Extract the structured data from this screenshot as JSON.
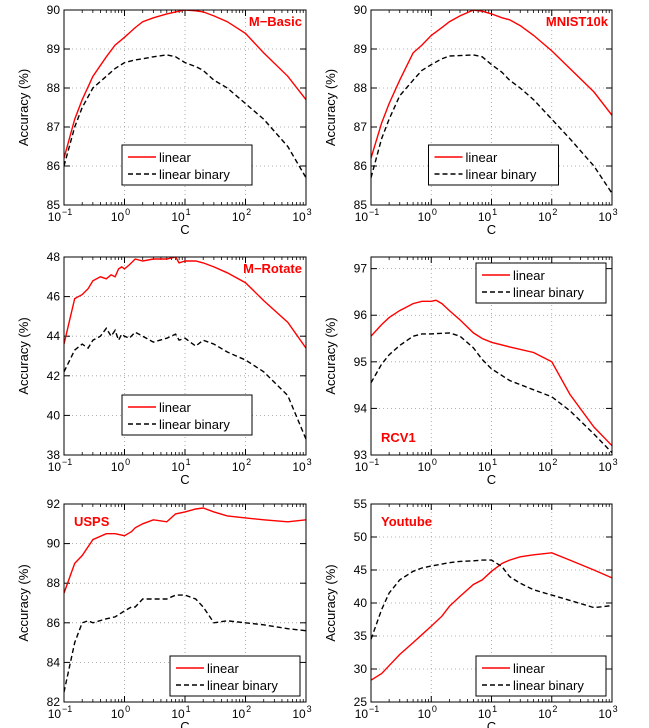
{
  "chart_data": [
    {
      "type": "line",
      "title": "M−Basic",
      "title_position": "top-right",
      "xlabel": "C",
      "ylabel": "Accuracy (%)",
      "xscale": "log",
      "xlim": [
        0.1,
        1000
      ],
      "ylim": [
        85,
        90
      ],
      "yticks": [
        "85",
        "86",
        "87",
        "88",
        "89",
        "90"
      ],
      "grid": true,
      "legend_position": "bottom-center",
      "series": [
        {
          "name": "linear",
          "color": "#ff0000",
          "dash": "solid",
          "x": [
            0.1,
            0.15,
            0.2,
            0.3,
            0.5,
            0.7,
            1,
            1.5,
            2,
            3,
            5,
            7,
            10,
            15,
            20,
            30,
            50,
            100,
            200,
            500,
            1000
          ],
          "y": [
            86.2,
            87.2,
            87.7,
            88.3,
            88.8,
            89.1,
            89.3,
            89.55,
            89.7,
            89.8,
            89.9,
            89.95,
            90.0,
            89.98,
            89.95,
            89.85,
            89.7,
            89.4,
            88.9,
            88.3,
            87.7
          ]
        },
        {
          "name": "linear binary",
          "color": "#000000",
          "dash": "dashed",
          "x": [
            0.1,
            0.15,
            0.2,
            0.3,
            0.5,
            0.7,
            1,
            1.5,
            2,
            3,
            5,
            7,
            10,
            15,
            20,
            30,
            50,
            100,
            200,
            500,
            1000
          ],
          "y": [
            86.0,
            87.0,
            87.5,
            88.0,
            88.3,
            88.5,
            88.65,
            88.72,
            88.75,
            88.8,
            88.85,
            88.8,
            88.65,
            88.55,
            88.45,
            88.2,
            88.0,
            87.6,
            87.2,
            86.5,
            85.7
          ]
        }
      ]
    },
    {
      "type": "line",
      "title": "MNIST10k",
      "title_position": "top-right",
      "xlabel": "C",
      "ylabel": "Accuracy (%)",
      "xscale": "log",
      "xlim": [
        0.1,
        1000
      ],
      "ylim": [
        85,
        90
      ],
      "yticks": [
        "85",
        "86",
        "87",
        "88",
        "89",
        "90"
      ],
      "grid": true,
      "legend_position": "bottom-center",
      "series": [
        {
          "name": "linear",
          "color": "#ff0000",
          "dash": "solid",
          "x": [
            0.1,
            0.15,
            0.2,
            0.3,
            0.5,
            0.7,
            1,
            1.5,
            2,
            3,
            5,
            7,
            10,
            15,
            20,
            30,
            50,
            100,
            200,
            500,
            1000
          ],
          "y": [
            86.2,
            87.1,
            87.6,
            88.2,
            88.9,
            89.1,
            89.35,
            89.55,
            89.7,
            89.85,
            90.0,
            89.97,
            89.9,
            89.8,
            89.75,
            89.6,
            89.35,
            88.95,
            88.5,
            87.9,
            87.3
          ]
        },
        {
          "name": "linear binary",
          "color": "#000000",
          "dash": "dashed",
          "x": [
            0.1,
            0.15,
            0.2,
            0.3,
            0.5,
            0.7,
            1,
            1.5,
            2,
            3,
            5,
            7,
            10,
            15,
            20,
            30,
            50,
            100,
            200,
            500,
            1000
          ],
          "y": [
            85.7,
            86.7,
            87.2,
            87.8,
            88.2,
            88.45,
            88.6,
            88.75,
            88.82,
            88.83,
            88.85,
            88.8,
            88.6,
            88.4,
            88.2,
            88.0,
            87.7,
            87.2,
            86.7,
            86.0,
            85.3
          ]
        }
      ]
    },
    {
      "type": "line",
      "title": "M−Rotate",
      "title_position": "top-right",
      "xlabel": "C",
      "ylabel": "Accuracy (%)",
      "xscale": "log",
      "xlim": [
        0.1,
        1000
      ],
      "ylim": [
        38,
        48
      ],
      "yticks": [
        "38",
        "40",
        "42",
        "44",
        "46",
        "48"
      ],
      "grid": true,
      "legend_position": "bottom-center",
      "series": [
        {
          "name": "linear",
          "color": "#ff0000",
          "dash": "solid",
          "x": [
            0.1,
            0.15,
            0.2,
            0.25,
            0.3,
            0.4,
            0.5,
            0.6,
            0.7,
            0.8,
            0.9,
            1,
            1.2,
            1.5,
            2,
            3,
            5,
            7,
            8,
            10,
            15,
            20,
            30,
            50,
            100,
            200,
            500,
            1000
          ],
          "y": [
            43.6,
            45.9,
            46.1,
            46.4,
            46.8,
            47.0,
            46.9,
            47.1,
            47.0,
            47.4,
            47.5,
            47.4,
            47.6,
            47.9,
            47.8,
            47.9,
            47.9,
            48.0,
            47.7,
            47.8,
            47.8,
            47.7,
            47.5,
            47.2,
            46.7,
            45.8,
            44.7,
            43.4
          ]
        },
        {
          "name": "linear binary",
          "color": "#000000",
          "dash": "dashed",
          "x": [
            0.1,
            0.15,
            0.2,
            0.25,
            0.3,
            0.4,
            0.5,
            0.6,
            0.7,
            0.8,
            0.9,
            1,
            1.2,
            1.5,
            2,
            3,
            5,
            7,
            8,
            10,
            15,
            20,
            30,
            50,
            100,
            200,
            500,
            1000
          ],
          "y": [
            42.2,
            43.3,
            43.6,
            43.4,
            43.8,
            44.0,
            44.4,
            44.0,
            44.3,
            43.8,
            44.1,
            44.0,
            43.9,
            44.2,
            44.0,
            43.7,
            43.9,
            44.1,
            43.8,
            43.9,
            43.5,
            43.8,
            43.6,
            43.2,
            42.8,
            42.2,
            41.0,
            38.8
          ]
        }
      ]
    },
    {
      "type": "line",
      "title": "RCV1",
      "title_position": "bottom-left",
      "xlabel": "C",
      "ylabel": "Accuracy (%)",
      "xscale": "log",
      "xlim": [
        0.1,
        1000
      ],
      "ylim": [
        93,
        97.25
      ],
      "yticks": [
        "93",
        "94",
        "95",
        "96",
        "97"
      ],
      "grid": true,
      "legend_position": "top-right",
      "series": [
        {
          "name": "linear",
          "color": "#ff0000",
          "dash": "solid",
          "x": [
            0.1,
            0.15,
            0.2,
            0.3,
            0.5,
            0.7,
            1,
            1.2,
            1.5,
            2,
            3,
            5,
            7,
            10,
            20,
            50,
            100,
            200,
            500,
            1000
          ],
          "y": [
            95.55,
            95.8,
            95.95,
            96.1,
            96.25,
            96.3,
            96.3,
            96.32,
            96.25,
            96.1,
            95.9,
            95.62,
            95.5,
            95.42,
            95.32,
            95.2,
            95.0,
            94.3,
            93.6,
            93.2
          ]
        },
        {
          "name": "linear binary",
          "color": "#000000",
          "dash": "dashed",
          "x": [
            0.1,
            0.15,
            0.2,
            0.3,
            0.5,
            0.7,
            1,
            2,
            3,
            5,
            7,
            10,
            20,
            50,
            100,
            200,
            500,
            1000
          ],
          "y": [
            94.55,
            94.95,
            95.15,
            95.35,
            95.55,
            95.6,
            95.6,
            95.62,
            95.55,
            95.3,
            95.05,
            94.85,
            94.6,
            94.4,
            94.25,
            93.95,
            93.45,
            93.05
          ]
        }
      ]
    },
    {
      "type": "line",
      "title": "USPS",
      "title_position": "top-left",
      "xlabel": "C",
      "ylabel": "Accuracy (%)",
      "xscale": "log",
      "xlim": [
        0.1,
        1000
      ],
      "ylim": [
        82,
        92
      ],
      "yticks": [
        "82",
        "84",
        "86",
        "88",
        "90",
        "92"
      ],
      "grid": true,
      "legend_position": "bottom-right",
      "series": [
        {
          "name": "linear",
          "color": "#ff0000",
          "dash": "solid",
          "x": [
            0.1,
            0.15,
            0.2,
            0.3,
            0.5,
            0.7,
            1,
            1.3,
            1.5,
            2,
            3,
            5,
            7,
            10,
            15,
            20,
            30,
            50,
            100,
            200,
            500,
            1000
          ],
          "y": [
            87.5,
            89.0,
            89.4,
            90.2,
            90.5,
            90.5,
            90.4,
            90.6,
            90.8,
            91.0,
            91.2,
            91.1,
            91.5,
            91.6,
            91.75,
            91.8,
            91.6,
            91.4,
            91.3,
            91.2,
            91.1,
            91.2
          ]
        },
        {
          "name": "linear binary",
          "color": "#000000",
          "dash": "dashed",
          "x": [
            0.1,
            0.15,
            0.2,
            0.25,
            0.3,
            0.5,
            0.7,
            1,
            1.3,
            1.5,
            2,
            3,
            5,
            7,
            10,
            15,
            20,
            30,
            50,
            100,
            200,
            500,
            1000
          ],
          "y": [
            82.5,
            85.0,
            86.0,
            86.1,
            86.0,
            86.2,
            86.3,
            86.6,
            86.8,
            86.8,
            87.2,
            87.2,
            87.2,
            87.4,
            87.4,
            87.2,
            86.8,
            86.0,
            86.1,
            86.0,
            85.9,
            85.7,
            85.6
          ]
        }
      ]
    },
    {
      "type": "line",
      "title": "Youtube",
      "title_position": "top-left",
      "xlabel": "C",
      "ylabel": "Accuracy (%)",
      "xscale": "log",
      "xlim": [
        0.1,
        1000
      ],
      "ylim": [
        25,
        55
      ],
      "yticks": [
        "25",
        "30",
        "35",
        "40",
        "45",
        "50",
        "55"
      ],
      "grid": true,
      "legend_position": "bottom-right",
      "series": [
        {
          "name": "linear",
          "color": "#ff0000",
          "dash": "solid",
          "x": [
            0.1,
            0.15,
            0.2,
            0.3,
            0.5,
            0.7,
            1,
            1.5,
            2,
            3,
            5,
            7,
            10,
            15,
            20,
            30,
            50,
            100,
            200,
            500,
            1000
          ],
          "y": [
            28.3,
            29.3,
            30.5,
            32.2,
            34.0,
            35.2,
            36.5,
            38.0,
            39.5,
            41.0,
            42.8,
            43.5,
            44.8,
            46.0,
            46.5,
            47.0,
            47.3,
            47.6,
            46.5,
            45.0,
            43.8
          ]
        },
        {
          "name": "linear binary",
          "color": "#000000",
          "dash": "dashed",
          "x": [
            0.1,
            0.15,
            0.2,
            0.3,
            0.5,
            0.7,
            1,
            1.5,
            2,
            3,
            5,
            7,
            10,
            15,
            20,
            30,
            50,
            100,
            200,
            500,
            1000
          ],
          "y": [
            34.5,
            39.0,
            41.5,
            43.5,
            44.8,
            45.3,
            45.6,
            45.9,
            46.1,
            46.3,
            46.4,
            46.5,
            46.5,
            45.5,
            44.0,
            43.0,
            42.0,
            41.2,
            40.4,
            39.3,
            39.6
          ]
        }
      ]
    }
  ]
}
